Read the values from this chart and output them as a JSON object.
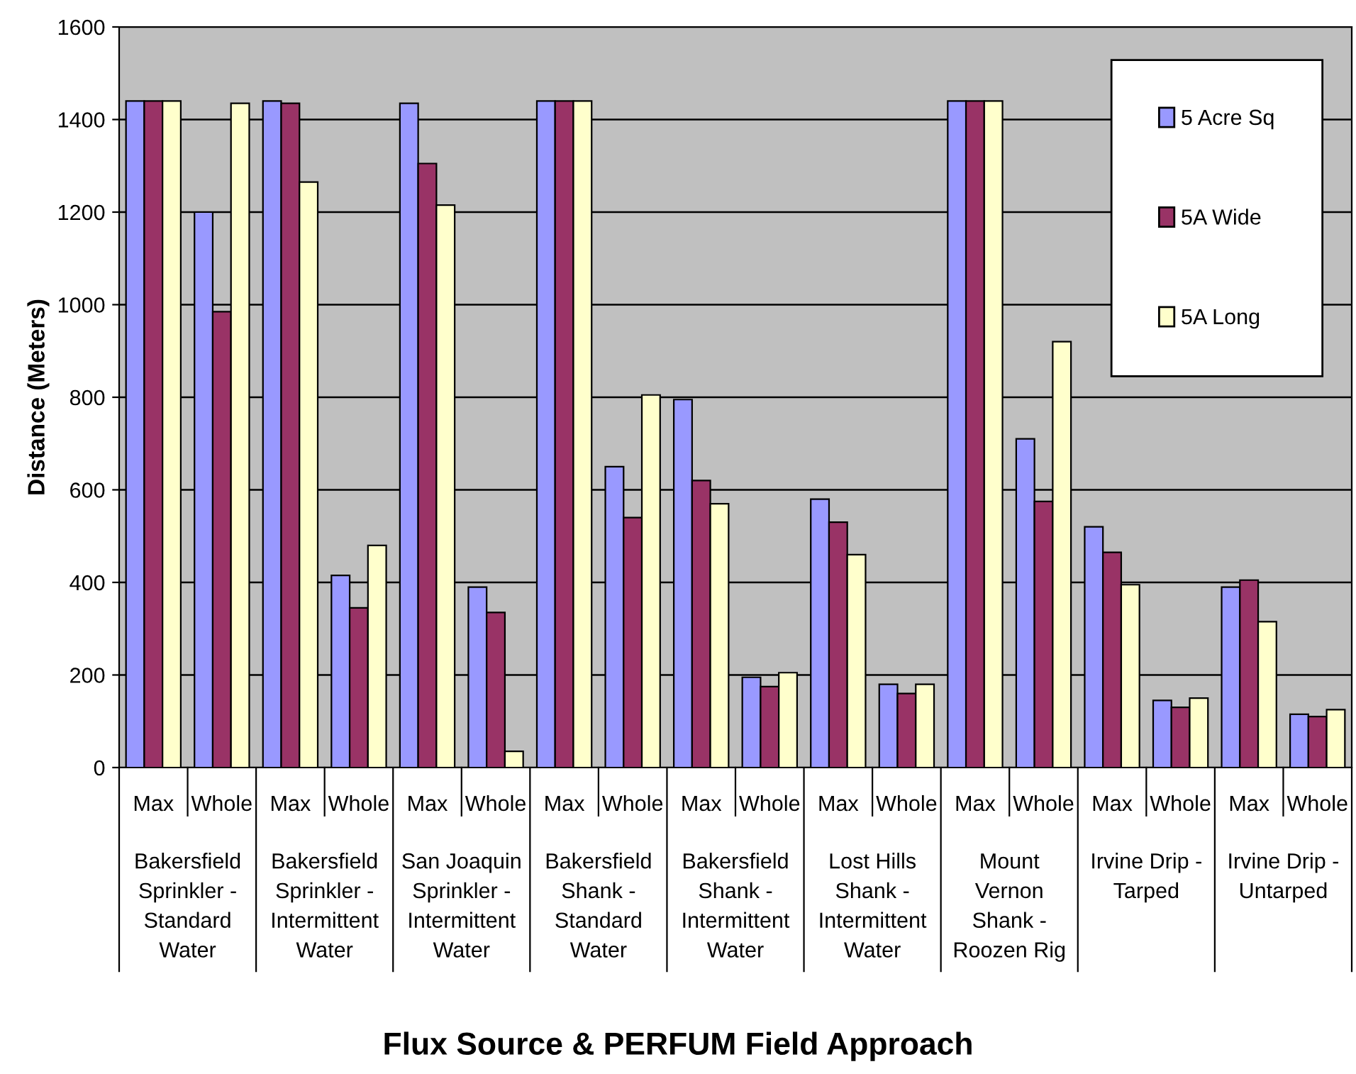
{
  "chart_data": {
    "type": "bar",
    "ylabel": "Distance (Meters)",
    "categories": [
      "Max",
      "Whole",
      "Max",
      "Whole",
      "Max",
      "Whole",
      "Max",
      "Whole",
      "Max",
      "Whole",
      "Max",
      "Whole",
      "Max",
      "Whole",
      "Max",
      "Whole",
      "Max",
      "Whole"
    ],
    "series": [
      {
        "name": "5 Acre Sq",
        "color": "#9999ff",
        "values": [
          1440,
          1200,
          1440,
          415,
          1435,
          390,
          1440,
          650,
          795,
          195,
          580,
          180,
          1440,
          710,
          520,
          145,
          390,
          115
        ]
      },
      {
        "name": "5A Wide",
        "color": "#993366",
        "values": [
          1440,
          985,
          1435,
          345,
          1305,
          335,
          1440,
          540,
          620,
          175,
          530,
          160,
          1440,
          575,
          465,
          130,
          405,
          110
        ]
      },
      {
        "name": "5A Long",
        "color": "#ffffcc",
        "values": [
          1440,
          1435,
          1265,
          480,
          1215,
          35,
          1440,
          805,
          570,
          205,
          460,
          180,
          1440,
          920,
          395,
          150,
          315,
          125
        ]
      }
    ],
    "annotations": [
      "Bakersfield\nSprinkler -\nStandard\nWater",
      "Bakersfield\nSprinkler -\nIntermittent\nWater",
      "San Joaquin\nSprinkler -\nIntermittent\nWater",
      "Bakersfield\nShank -\nStandard\nWater",
      "Bakersfield\nShank -\nIntermittent\nWater",
      "Lost Hills\nShank -\nIntermittent\nWater",
      "Mount\nVernon\nShank -\nRoozen Rig",
      "Irvine Drip -\nTarped",
      "Irvine Drip -\nUntarped",
      "Flux Source & PERFUM Field Approach"
    ],
    "ylim": [
      0,
      1600
    ],
    "yticks": [
      0,
      200,
      400,
      600,
      800,
      1000,
      1200,
      1400,
      1600
    ],
    "grid": "y",
    "legend": "top right"
  }
}
